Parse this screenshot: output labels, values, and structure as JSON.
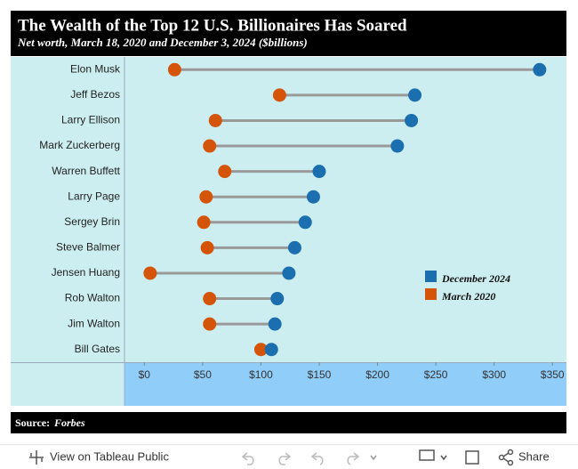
{
  "chart_data": {
    "type": "dumbbell",
    "title": "The Wealth of the Top 12 U.S. Billionaires Has Soared",
    "subtitle": "Net worth, March 18, 2020 and December 3, 2024 ($billions)",
    "source_label": "Source:",
    "source": "Forbes",
    "categories": [
      "Elon Musk",
      "Jeff Bezos",
      "Larry Ellison",
      "Mark Zuckerberg",
      "Warren Buffett",
      "Larry Page",
      "Sergey Brin",
      "Steve Balmer",
      "Jensen Huang",
      "Rob Walton",
      "Jim Walton",
      "Bill Gates"
    ],
    "series": [
      {
        "name": "December 2024",
        "color": "#1b6fae",
        "values": [
          339,
          232,
          229,
          217,
          150,
          145,
          138,
          129,
          124,
          114,
          112,
          109
        ]
      },
      {
        "name": "March 2020",
        "color": "#d4540a",
        "values": [
          26,
          116,
          61,
          56,
          69,
          53,
          51,
          54,
          5,
          56,
          56,
          100
        ]
      }
    ],
    "xlim": [
      -17,
      362
    ],
    "xticks": [
      {
        "value": 0,
        "label": "$0"
      },
      {
        "value": 50,
        "label": "$50"
      },
      {
        "value": 100,
        "label": "$100"
      },
      {
        "value": 150,
        "label": "$150"
      },
      {
        "value": 200,
        "label": "$200"
      },
      {
        "value": 250,
        "label": "$250"
      },
      {
        "value": 300,
        "label": "$300"
      },
      {
        "value": 350,
        "label": "$350"
      }
    ],
    "legend": "right"
  },
  "toolbar": {
    "view": "View on Tableau Public",
    "share": "Share"
  }
}
